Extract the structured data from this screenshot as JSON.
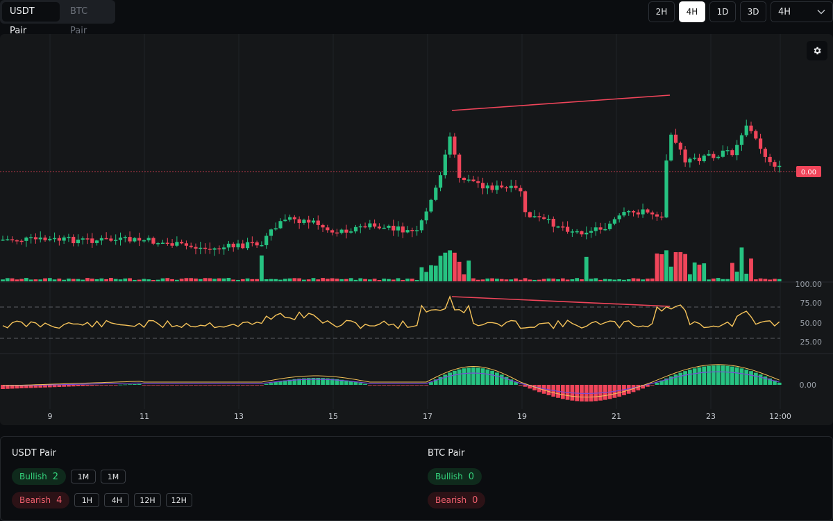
{
  "pair_tabs": [
    {
      "label": "USDT Pair",
      "active": true
    },
    {
      "label": "BTC Pair",
      "active": false
    }
  ],
  "timeframes": [
    {
      "label": "2H",
      "active": false
    },
    {
      "label": "4H",
      "active": true
    },
    {
      "label": "1D",
      "active": false
    },
    {
      "label": "3D",
      "active": false
    }
  ],
  "timeframe_select": {
    "value": "4H"
  },
  "price_chart": {
    "last_price_label": "0.00",
    "x_tick_labels": [
      "9",
      "11",
      "13",
      "15",
      "17",
      "19",
      "21",
      "23",
      "12:00"
    ],
    "rsi_axis_labels": [
      "100.00",
      "75.00",
      "50.00",
      "25.00"
    ],
    "macd_axis_label": "0.00",
    "colors": {
      "up": "#26c281",
      "down": "#f0455a",
      "rsi_line": "#f5c35a",
      "macd_signal": "#7a4cd9",
      "macd_line": "#f5c35a",
      "divergence": "#f0455a"
    }
  },
  "panel": {
    "usdt": {
      "title": "USDT Pair",
      "bullish_label": "Bullish",
      "bullish_count": "2",
      "bearish_label": "Bearish",
      "bearish_count": "4",
      "bullish_tfs": [
        "1M",
        "1M"
      ],
      "bearish_tfs": [
        "1H",
        "4H",
        "12H",
        "12H"
      ]
    },
    "btc": {
      "title": "BTC Pair",
      "bullish_label": "Bullish",
      "bullish_count": "0",
      "bearish_label": "Bearish",
      "bearish_count": "0"
    }
  },
  "icons": {
    "gear": "gear-icon",
    "dropdown": "chevron-down-icon"
  }
}
